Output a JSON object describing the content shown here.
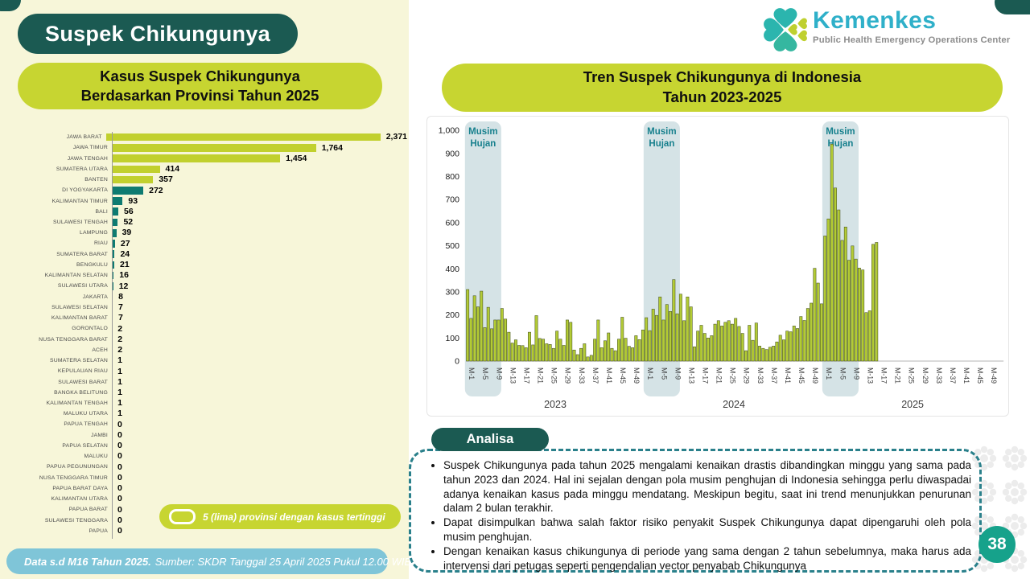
{
  "page_title": "Suspek Chikungunya",
  "page_number": "38",
  "logo": {
    "name": "Kemenkes",
    "tagline": "Public Health Emergency Operations Center"
  },
  "footer": {
    "bold": "Data s.d M16 Tahun 2025.",
    "regular": "Sumber: SKDR Tanggal 25 April 2025 Pukul 12.00 WIB"
  },
  "analysis": {
    "title": "Analisa",
    "bullets": [
      "Suspek Chikungunya pada tahun 2025 mengalami kenaikan drastis dibandingkan minggu yang sama pada tahun 2023 dan 2024. Hal ini sejalan dengan pola musim penghujan di Indonesia sehingga perlu diwaspadai adanya kenaikan kasus pada minggu mendatang. Meskipun begitu, saat ini trend menunjukkan penurunan dalam 2 bulan terakhir.",
      "Dapat disimpulkan bahwa salah faktor risiko penyakit Suspek Chikungunya dapat dipengaruhi oleh pola musim penghujan.",
      "Dengan kenaikan kasus chikungunya di periode yang sama dengan 2 tahun sebelumnya, maka harus ada intervensi dari petugas seperti pengendalian vector penyabab Chikungunya"
    ]
  },
  "colors": {
    "dark_teal": "#1b5a52",
    "lime": "#c7d531",
    "bar_teal": "#0e7b71",
    "bar_lime": "#c1d02e",
    "trend_bar": "#b3cb35",
    "trend_bar_stroke": "#47531d",
    "season_band": "#d5e3e6",
    "season_text": "#17808d",
    "footer_blue": "#7fc5d8",
    "page_circle": "#16a28b",
    "logo_teal": "#2fb0c9",
    "dashed_border": "#2a808b",
    "left_bg": "#f7f6d9"
  },
  "chart_data": [
    {
      "id": "province_bar",
      "type": "bar",
      "orientation": "horizontal",
      "title": "Kasus Suspek Chikungunya Berdasarkan Provinsi Tahun 2025",
      "title_lines": [
        "Kasus Suspek Chikungunya",
        "Berdasarkan Provinsi Tahun 2025"
      ],
      "legend": "5 (lima) provinsi dengan kasus tertinggi",
      "highlight_top_n": 5,
      "xlim": [
        0,
        2500
      ],
      "categories": [
        "JAWA BARAT",
        "JAWA TIMUR",
        "JAWA TENGAH",
        "SUMATERA UTARA",
        "BANTEN",
        "DI YOGYAKARTA",
        "KALIMANTAN TIMUR",
        "BALI",
        "SULAWESI TENGAH",
        "LAMPUNG",
        "RIAU",
        "SUMATERA BARAT",
        "BENGKULU",
        "KALIMANTAN SELATAN",
        "SULAWESI UTARA",
        "JAKARTA",
        "SULAWESI SELATAN",
        "KALIMANTAN BARAT",
        "GORONTALO",
        "NUSA TENGGARA BARAT",
        "ACEH",
        "SUMATERA SELATAN",
        "KEPULAUAN RIAU",
        "SULAWESI BARAT",
        "BANGKA BELITUNG",
        "KALIMANTAN TENGAH",
        "MALUKU UTARA",
        "PAPUA TENGAH",
        "JAMBI",
        "PAPUA SELATAN",
        "MALUKU",
        "PAPUA PEGUNUNGAN",
        "NUSA TENGGARA TIMUR",
        "PAPUA BARAT DAYA",
        "KALIMANTAN UTARA",
        "PAPUA BARAT",
        "SULAWESI TENGGARA",
        "PAPUA"
      ],
      "values": [
        2371,
        1764,
        1454,
        414,
        357,
        272,
        93,
        56,
        52,
        39,
        27,
        24,
        21,
        16,
        12,
        8,
        7,
        7,
        2,
        2,
        2,
        1,
        1,
        1,
        1,
        1,
        1,
        0,
        0,
        0,
        0,
        0,
        0,
        0,
        0,
        0,
        0,
        0
      ]
    },
    {
      "id": "weekly_trend",
      "type": "bar",
      "title": "Tren Suspek Chikungunya di Indonesia Tahun 2023-2025",
      "title_lines": [
        "Tren Suspek Chikungunya di Indonesia",
        "Tahun 2023-2025"
      ],
      "ylim": [
        0,
        1000
      ],
      "y_tick_step": 100,
      "grid": false,
      "season_label_lines": [
        "Musim",
        "Hujan"
      ],
      "season_band_weeks": [
        1,
        10
      ],
      "weeks_per_year": 52,
      "x_tick_labels_per_year": [
        "M-1",
        "M-5",
        "M-9",
        "M-13",
        "M-17",
        "M-21",
        "M-25",
        "M-29",
        "M-33",
        "M-37",
        "M-41",
        "M-45",
        "M-49"
      ],
      "series": [
        {
          "name": "2023",
          "values": [
            310,
            185,
            283,
            235,
            303,
            145,
            233,
            140,
            178,
            178,
            228,
            182,
            125,
            78,
            92,
            68,
            67,
            58,
            125,
            70,
            197,
            98,
            95,
            75,
            72,
            55,
            130,
            95,
            68,
            178,
            168,
            48,
            28,
            55,
            75,
            18,
            25,
            95,
            178,
            58,
            88,
            122,
            55,
            45,
            95,
            190,
            99,
            64,
            58,
            110,
            93,
            135
          ]
        },
        {
          "name": "2024",
          "values": [
            188,
            132,
            225,
            198,
            278,
            178,
            245,
            215,
            353,
            205,
            290,
            175,
            278,
            235,
            62,
            130,
            155,
            120,
            100,
            110,
            160,
            175,
            152,
            168,
            175,
            160,
            185,
            150,
            120,
            45,
            155,
            90,
            165,
            65,
            55,
            50,
            60,
            65,
            83,
            112,
            92,
            130,
            127,
            152,
            141,
            193,
            176,
            228,
            251,
            402,
            338,
            248
          ]
        },
        {
          "name": "2025",
          "values": [
            542,
            616,
            940,
            750,
            655,
            523,
            581,
            437,
            499,
            442,
            403,
            395,
            210,
            218,
            506,
            514
          ]
        }
      ]
    }
  ]
}
